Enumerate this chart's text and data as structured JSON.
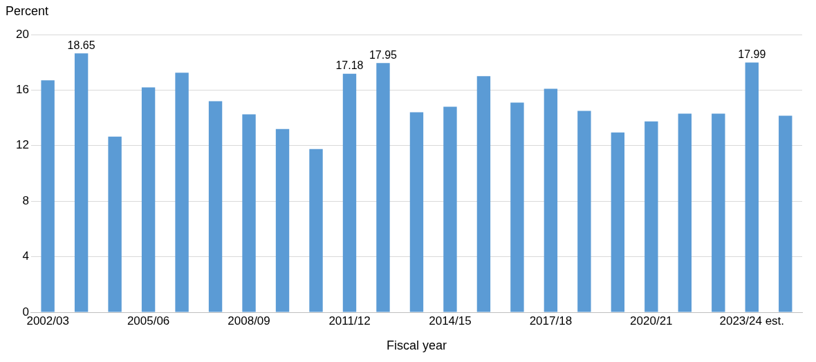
{
  "chart_data": {
    "type": "bar",
    "xlabel": "Fiscal year",
    "ylabel": "Percent",
    "categories": [
      "2002/03",
      null,
      null,
      "2005/06",
      null,
      null,
      "2008/09",
      null,
      null,
      "2011/12",
      null,
      null,
      "2014/15",
      null,
      null,
      "2017/18",
      null,
      null,
      "2020/21",
      null,
      null,
      "2023/24 est.",
      null
    ],
    "values": [
      16.7,
      18.65,
      12.65,
      16.2,
      17.25,
      15.2,
      14.25,
      13.2,
      11.75,
      17.18,
      17.95,
      14.4,
      14.8,
      17.0,
      15.1,
      16.1,
      14.5,
      12.95,
      13.75,
      14.3,
      14.3,
      17.99,
      14.15
    ],
    "value_labels": [
      null,
      "18.65",
      null,
      null,
      null,
      null,
      null,
      null,
      null,
      "17.18",
      "17.95",
      null,
      null,
      null,
      null,
      null,
      null,
      null,
      null,
      null,
      null,
      "17.99",
      null
    ],
    "color": "#5b9bd5",
    "ylim": [
      0,
      20
    ],
    "yticks": [
      0,
      4,
      8,
      12,
      16,
      20
    ],
    "grid": "y",
    "legend": false
  }
}
